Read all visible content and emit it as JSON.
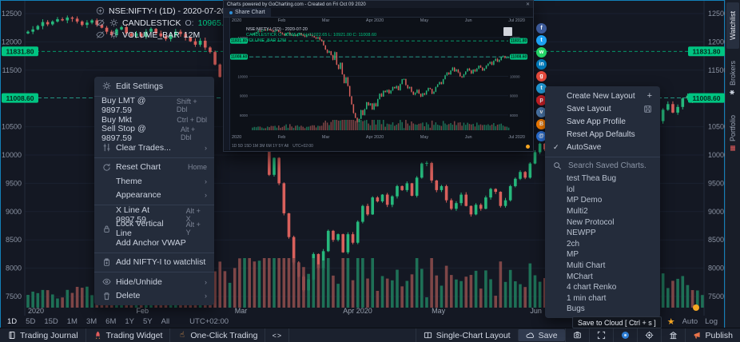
{
  "symbol_bar": {
    "title": "NSE:NIFTY-I (1D) - 2020-07-20",
    "series_label": "CANDLESTICK",
    "o_label": "O:",
    "o": "10965.00",
    "h_label": "H:",
    "h": "11022.65",
    "l_label": "L:",
    "l": "10921.00",
    "c_label": "C:",
    "c": "11008.60",
    "volume_label": "VOLUME_BAR",
    "volume_value": "12M"
  },
  "timeframe_bar": {
    "ranges": [
      "1D",
      "5D",
      "15D",
      "1M",
      "3M",
      "6M",
      "1Y",
      "5Y",
      "All"
    ],
    "active_range": "1D",
    "timezone": "UTC+02:00",
    "right_labels": [
      "Auto",
      "Log"
    ]
  },
  "side_tabs": [
    {
      "label": "Watchlist",
      "active": true,
      "icon": ""
    },
    {
      "label": "Brokers",
      "active": false,
      "icon": "✱"
    },
    {
      "label": "Portfolio",
      "active": false,
      "icon": "▦"
    }
  ],
  "context_menu": {
    "sections": [
      {
        "items": [
          {
            "label": "Edit Settings",
            "icon": "gear-icon"
          }
        ]
      },
      {
        "items": [
          {
            "label": "Buy LMT @ 9897.59",
            "shortcut": "Shift + Dbl"
          },
          {
            "label": "Buy Mkt",
            "shortcut": "Ctrl + Dbl"
          },
          {
            "label": "Sell Stop @ 9897.59",
            "shortcut": "Alt + Dbl"
          },
          {
            "label": "Clear Trades...",
            "icon": "sliders-icon",
            "shortcut": "›"
          }
        ]
      },
      {
        "items": [
          {
            "label": "Reset Chart",
            "icon": "reset-icon",
            "shortcut": "Home"
          },
          {
            "label": "Theme",
            "indent": true,
            "shortcut": "›"
          },
          {
            "label": "Appearance",
            "indent": true,
            "shortcut": "›"
          }
        ]
      },
      {
        "items": [
          {
            "label": "X Line At 9897.59",
            "indent": true,
            "shortcut": "Alt + X"
          },
          {
            "label": "Lock Vertical Line",
            "icon": "lock-icon",
            "shortcut": "Alt + Y"
          },
          {
            "label": "Add Anchor VWAP",
            "indent": true
          }
        ]
      },
      {
        "items": [
          {
            "label": "Add NIFTY-I to watchlist",
            "icon": "clipboard-icon"
          }
        ]
      },
      {
        "items": [
          {
            "label": "Hide/Unhide",
            "icon": "eye-icon",
            "shortcut": "›"
          },
          {
            "label": "Delete",
            "icon": "trash-icon",
            "shortcut": "›"
          }
        ]
      }
    ]
  },
  "layout_menu": {
    "items": [
      {
        "label": "Create New Layout",
        "right_icon": "plus-icon"
      },
      {
        "label": "Save Layout",
        "right_icon": "save-icon"
      },
      {
        "label": "Save App Profile"
      },
      {
        "label": "Reset App Defaults"
      },
      {
        "label": "AutoSave",
        "left_icon": "check-icon"
      }
    ],
    "search_placeholder": "Search Saved Charts.",
    "saved_charts": [
      "test Thea Bug",
      "lol",
      "MP Demo",
      "Multi2",
      "New Protocol",
      "NEWPP",
      "2ch",
      "MP",
      "Multi Chart",
      "MChart",
      "4 chart Renko",
      "1 min chart",
      "Bugs"
    ]
  },
  "inset": {
    "title": "Charts powered by GoCharting.com - Created on Fri Oct 09 2020",
    "close_label": "✕",
    "tab_label": "Share Chart",
    "legend_title": "NSE:NIFTY-I (1D) - 2020-07-20",
    "legend_ohlc": "CANDLESTICK O: 10965.00 H: 11022.65 L: 10921.00 C: 11008.60",
    "legend_volume": "VOLUME_BAR 12M",
    "months": [
      "2020",
      "Feb",
      "Mar",
      "Apr 2020",
      "May",
      "Jun",
      "Jul 2020"
    ],
    "mini_tf": "1D  5D  15D  1M  3M  6M  1Y  5Y  All",
    "mini_tz": "UTC+02:00"
  },
  "share_buttons": [
    {
      "name": "facebook",
      "color": "#3b5998",
      "glyph": "f"
    },
    {
      "name": "twitter",
      "color": "#1da1f2",
      "glyph": "t"
    },
    {
      "name": "whatsapp",
      "color": "#25d366",
      "glyph": "w"
    },
    {
      "name": "linkedin",
      "color": "#0077b5",
      "glyph": "in"
    },
    {
      "name": "googleplus",
      "color": "#e2493b",
      "glyph": "g"
    },
    {
      "name": "telegram",
      "color": "#2197d2",
      "glyph": "t"
    },
    {
      "name": "pinterest",
      "color": "#cb2027",
      "glyph": "p"
    },
    {
      "name": "vk",
      "color": "#4a76a8",
      "glyph": "v"
    },
    {
      "name": "blogger",
      "color": "#f57d00",
      "glyph": "B"
    },
    {
      "name": "email",
      "color": "#2a6fd4",
      "glyph": "@"
    }
  ],
  "tooltip": "Save to Cloud [ Ctrl + s ]",
  "bottom_bar": {
    "left": [
      {
        "label": "Trading Journal",
        "icon": "journal-icon"
      },
      {
        "label": "Trading Widget",
        "icon": "rocket-icon"
      },
      {
        "label": "One-Click Trading",
        "icon": "hand-icon"
      },
      {
        "label": "",
        "icon": "code-icon"
      }
    ],
    "right": [
      {
        "label": "Single-Chart Layout",
        "icon": "columns-icon"
      },
      {
        "label": "Save",
        "icon": "cloud-icon",
        "highlighted": true
      },
      {
        "label": "",
        "icon": "screenshot-icon"
      },
      {
        "label": "",
        "icon": "fullscreen-icon"
      },
      {
        "label": "",
        "icon": "camera-icon"
      },
      {
        "label": "",
        "icon": "target-icon"
      },
      {
        "label": "",
        "icon": "bank-icon"
      },
      {
        "label": "Publish",
        "icon": "megaphone-icon"
      }
    ]
  },
  "chart_data": {
    "type": "candlestick",
    "symbol": "NSE:NIFTY-I",
    "interval": "1D",
    "as_of_date": "2020-07-20",
    "title": "NSE:NIFTY-I (1D) - 2020-07-20",
    "ylim": [
      7400,
      12600
    ],
    "y_ticks": [
      12500,
      12000,
      11500,
      10500,
      10000,
      9500,
      9000,
      8500,
      8000,
      7500
    ],
    "price_badges": [
      11831.8,
      11008.6
    ],
    "x_labels": [
      "2020",
      "Feb",
      "Mar",
      "Apr 2020",
      "May",
      "Jun"
    ],
    "month_start_idx": [
      0,
      22,
      42,
      64,
      82,
      102,
      124
    ],
    "first_open": 12150,
    "last_candle": {
      "o": 10965.0,
      "h": 11022.65,
      "l": 10921.0,
      "c": 11008.6
    },
    "volume_display": "12M",
    "closes": [
      12180,
      12220,
      12280,
      12350,
      12310,
      12360,
      12400,
      12380,
      12430,
      12410,
      12360,
      12300,
      12340,
      12380,
      12300,
      12250,
      12180,
      12120,
      12220,
      12260,
      12150,
      12100,
      12150,
      12090,
      12180,
      12230,
      12150,
      12100,
      12050,
      12120,
      12180,
      12140,
      12080,
      12010,
      11950,
      12020,
      11900,
      11820,
      11600,
      11380,
      11220,
      11300,
      11100,
      10850,
      11250,
      10600,
      10380,
      10700,
      10100,
      9650,
      9950,
      9500,
      8970,
      8550,
      8100,
      7850,
      7610,
      7800,
      8250,
      8000,
      8300,
      8660,
      8500,
      8600,
      8280,
      8600,
      8450,
      8820,
      9100,
      8950,
      9250,
      9180,
      9300,
      9120,
      9270,
      9450,
      9380,
      9500,
      9280,
      9600,
      9850,
      9860,
      9550,
      9380,
      9450,
      9200,
      9050,
      9150,
      9300,
      9100,
      8950,
      9120,
      9050,
      9250,
      9400,
      9350,
      9100,
      9200,
      9450,
      9580,
      9700,
      9600,
      9850,
      10050,
      10200,
      10100,
      10300,
      10450,
      10250,
      10350,
      10200,
      10000,
      9950,
      10100,
      10250,
      10400,
      10300,
      10150,
      10350,
      10250,
      10400,
      10550,
      10450,
      10300,
      10400,
      10550,
      10650,
      10750,
      10600,
      10800,
      10900,
      10750,
      10850,
      11000,
      11050,
      10950,
      10965,
      11008.6
    ],
    "colors": {
      "up": "#26b87c",
      "down": "#d9605c",
      "vol_up": "#1f7a5c",
      "vol_down": "#8a4b4b",
      "badge": "#00c582",
      "line_dashed": "#00c582",
      "line_solid": "#2dd0b0"
    }
  }
}
